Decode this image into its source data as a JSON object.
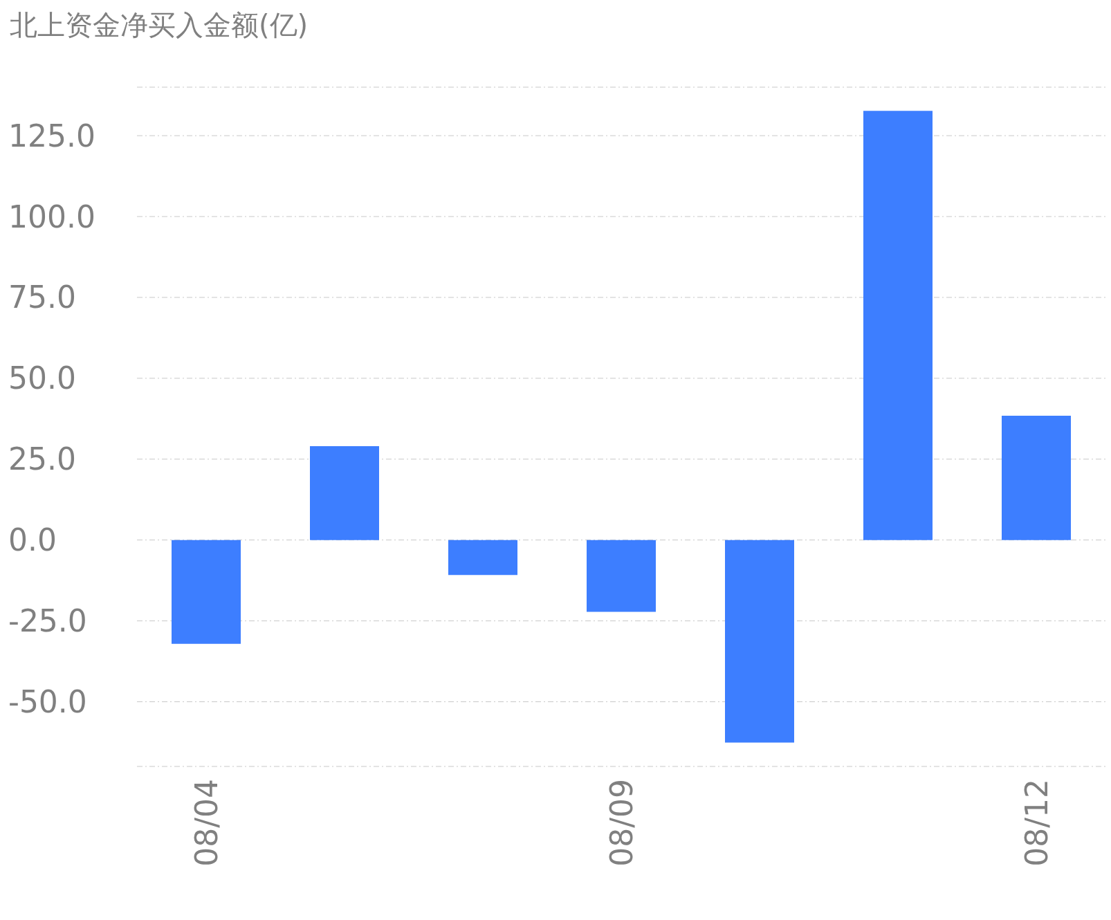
{
  "chart_data": {
    "type": "bar",
    "title": "北上资金净买入金额(亿)",
    "categories": [
      "08/04",
      null,
      null,
      "08/09",
      null,
      null,
      "08/12"
    ],
    "values": [
      -32.1,
      29.0,
      -10.8,
      -22.2,
      -62.6,
      132.7,
      38.4
    ],
    "color": "#3d7eff",
    "ylim": [
      -70,
      140
    ],
    "yticks": [
      {
        "value": -50,
        "label": "-50.0"
      },
      {
        "value": -25,
        "label": "-25.0"
      },
      {
        "value": 0,
        "label": "0.0"
      },
      {
        "value": 25,
        "label": "25.0"
      },
      {
        "value": 50,
        "label": "50.0"
      },
      {
        "value": 75,
        "label": "75.0"
      },
      {
        "value": 100,
        "label": "100.0"
      },
      {
        "value": 125,
        "label": "125.0"
      }
    ],
    "grid": "y"
  }
}
